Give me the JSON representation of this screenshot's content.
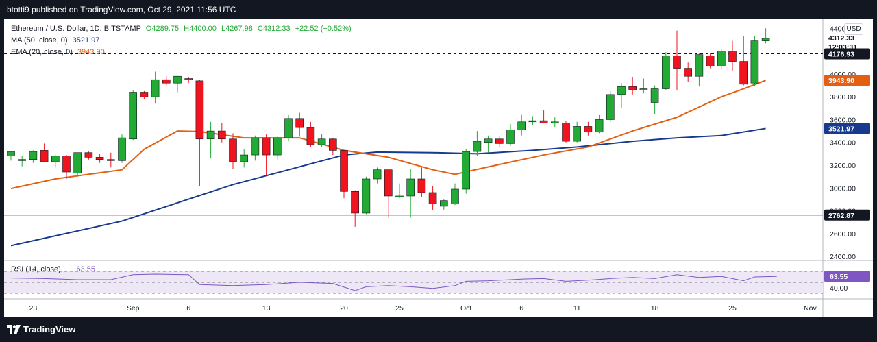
{
  "header": {
    "publisher": "btotti9 published on TradingView.com, Oct 29, 2021 11:56 UTC"
  },
  "footer": {
    "brand": "TradingView"
  },
  "legend": {
    "symbol": "Ethereum / U.S. Dollar, 1D, BITSTAMP",
    "open": "O4289.75",
    "high": "H4400.00",
    "low": "L4267.98",
    "close": "C4312.33",
    "change": "+22.52 (+0.52%)",
    "ma_label": "MA (50, close, 0)",
    "ma_value": "3521.97",
    "ema_label": "EMA (20, close, 0)",
    "ema_value": "3943.90"
  },
  "rsi_label": "RSI (14, close)",
  "rsi_value": "63.55",
  "currency": "USD",
  "colors": {
    "up": "#22ab34",
    "down": "#f0141f",
    "ma": "#173a8f",
    "ema": "#e35f12",
    "rsi": "#7e57c2",
    "rsi_band": "#ede7f6",
    "background": "#ffffff",
    "frame": "#131722"
  },
  "chart_data": {
    "type": "candlestick",
    "ylim": [
      2365,
      4480
    ],
    "price_ticks": [
      "4400.00",
      "4200.00",
      "4000.00",
      "3800.00",
      "3600.00",
      "3400.00",
      "3200.00",
      "3000.00",
      "2800.00",
      "2600.00",
      "2400.00"
    ],
    "x_ticks": [
      {
        "label": "23",
        "index": 2
      },
      {
        "label": "Sep",
        "index": 11
      },
      {
        "label": "6",
        "index": 16
      },
      {
        "label": "13",
        "index": 23
      },
      {
        "label": "20",
        "index": 30
      },
      {
        "label": "25",
        "index": 35
      },
      {
        "label": "Oct",
        "index": 41
      },
      {
        "label": "6",
        "index": 46
      },
      {
        "label": "11",
        "index": 51
      },
      {
        "label": "18",
        "index": 58
      },
      {
        "label": "25",
        "index": 65
      },
      {
        "label": "Nov",
        "index": 72
      }
    ],
    "candles": [
      [
        3280,
        3320,
        3240,
        3320
      ],
      [
        3240,
        3280,
        3190,
        3250
      ],
      [
        3250,
        3330,
        3220,
        3320
      ],
      [
        3330,
        3390,
        3240,
        3230
      ],
      [
        3230,
        3290,
        3180,
        3280
      ],
      [
        3280,
        3290,
        3080,
        3140
      ],
      [
        3130,
        3300,
        3100,
        3310
      ],
      [
        3310,
        3320,
        3250,
        3270
      ],
      [
        3270,
        3300,
        3220,
        3250
      ],
      [
        3250,
        3310,
        3180,
        3240
      ],
      [
        3240,
        3470,
        3220,
        3440
      ],
      [
        3430,
        3860,
        3420,
        3840
      ],
      [
        3840,
        3850,
        3780,
        3800
      ],
      [
        3800,
        4020,
        3740,
        3950
      ],
      [
        3950,
        3980,
        3900,
        3920
      ],
      [
        3920,
        3960,
        3840,
        3980
      ],
      [
        3960,
        3970,
        3920,
        3950
      ],
      [
        3940,
        3950,
        3020,
        3430
      ],
      [
        3430,
        3580,
        3260,
        3500
      ],
      [
        3500,
        3570,
        3400,
        3430
      ],
      [
        3430,
        3480,
        3170,
        3230
      ],
      [
        3230,
        3340,
        3180,
        3290
      ],
      [
        3290,
        3460,
        3240,
        3440
      ],
      [
        3440,
        3470,
        3110,
        3290
      ],
      [
        3290,
        3460,
        3250,
        3440
      ],
      [
        3440,
        3640,
        3410,
        3610
      ],
      [
        3610,
        3660,
        3450,
        3530
      ],
      [
        3530,
        3580,
        3360,
        3380
      ],
      [
        3380,
        3470,
        3360,
        3430
      ],
      [
        3430,
        3440,
        3290,
        3330
      ],
      [
        3330,
        3330,
        2910,
        2970
      ],
      [
        2970,
        2980,
        2660,
        2780
      ],
      [
        2780,
        3100,
        2770,
        3080
      ],
      [
        3080,
        3180,
        3040,
        3160
      ],
      [
        3160,
        3170,
        2740,
        2930
      ],
      [
        2930,
        3040,
        2910,
        2930
      ],
      [
        2930,
        3170,
        2740,
        3080
      ],
      [
        3080,
        3180,
        2920,
        2960
      ],
      [
        2960,
        3020,
        2810,
        2860
      ],
      [
        2840,
        2900,
        2810,
        2890
      ],
      [
        2860,
        3040,
        2850,
        2990
      ],
      [
        2990,
        3340,
        2950,
        3320
      ],
      [
        3320,
        3500,
        3280,
        3410
      ],
      [
        3400,
        3460,
        3310,
        3430
      ],
      [
        3430,
        3450,
        3360,
        3390
      ],
      [
        3390,
        3560,
        3370,
        3510
      ],
      [
        3510,
        3640,
        3460,
        3580
      ],
      [
        3580,
        3630,
        3550,
        3590
      ],
      [
        3590,
        3680,
        3570,
        3570
      ],
      [
        3570,
        3620,
        3530,
        3580
      ],
      [
        3570,
        3590,
        3400,
        3410
      ],
      [
        3410,
        3580,
        3400,
        3540
      ],
      [
        3540,
        3580,
        3460,
        3490
      ],
      [
        3490,
        3640,
        3480,
        3600
      ],
      [
        3600,
        3850,
        3580,
        3820
      ],
      [
        3820,
        3920,
        3700,
        3890
      ],
      [
        3890,
        3970,
        3820,
        3860
      ],
      [
        3860,
        3960,
        3830,
        3870
      ],
      [
        3750,
        3900,
        3650,
        3870
      ],
      [
        3870,
        4190,
        3860,
        4160
      ],
      [
        4160,
        4380,
        3860,
        4050
      ],
      [
        4050,
        4100,
        3930,
        3980
      ],
      [
        3980,
        4180,
        3890,
        4170
      ],
      [
        4160,
        4180,
        4050,
        4070
      ],
      [
        4070,
        4220,
        4040,
        4200
      ],
      [
        4200,
        4290,
        4030,
        4110
      ],
      [
        4110,
        4330,
        3900,
        3910
      ],
      [
        3920,
        4330,
        3890,
        4290
      ],
      [
        4290,
        4400,
        4267.98,
        4312.33
      ]
    ],
    "ma": [
      [
        0,
        2495
      ],
      [
        10,
        2710
      ],
      [
        20,
        3030
      ],
      [
        30,
        3290
      ],
      [
        33,
        3315
      ],
      [
        38,
        3310
      ],
      [
        42,
        3300
      ],
      [
        47,
        3330
      ],
      [
        51,
        3360
      ],
      [
        56,
        3410
      ],
      [
        60,
        3440
      ],
      [
        64,
        3460
      ],
      [
        68,
        3521.97
      ]
    ],
    "ema": [
      [
        0,
        2995
      ],
      [
        4,
        3080
      ],
      [
        10,
        3160
      ],
      [
        12,
        3340
      ],
      [
        15,
        3500
      ],
      [
        17,
        3495
      ],
      [
        21,
        3440
      ],
      [
        26,
        3440
      ],
      [
        30,
        3330
      ],
      [
        34,
        3270
      ],
      [
        38,
        3160
      ],
      [
        40,
        3120
      ],
      [
        43,
        3185
      ],
      [
        48,
        3290
      ],
      [
        52,
        3360
      ],
      [
        56,
        3500
      ],
      [
        60,
        3620
      ],
      [
        64,
        3800
      ],
      [
        66,
        3870
      ],
      [
        68,
        3943.9
      ]
    ],
    "levels": [
      {
        "value": 4176.93,
        "label": "4176.93",
        "style": "dashed"
      },
      {
        "value": 2762.87,
        "label": "2762.87",
        "style": "solid"
      }
    ],
    "last_price": {
      "value": 4312.33,
      "label": "4312.33",
      "countdown": "12:03:31"
    },
    "rsi": {
      "ylim": [
        20,
        90
      ],
      "upper": 70,
      "lower": 30,
      "mid": 50,
      "ticks": [
        "40.00"
      ],
      "values": [
        [
          0,
          58
        ],
        [
          3,
          57
        ],
        [
          6,
          55
        ],
        [
          9,
          55
        ],
        [
          11,
          64
        ],
        [
          13,
          65
        ],
        [
          16,
          64
        ],
        [
          17,
          46
        ],
        [
          20,
          44
        ],
        [
          23,
          46
        ],
        [
          26,
          50
        ],
        [
          29,
          48
        ],
        [
          31,
          35
        ],
        [
          32,
          42
        ],
        [
          34,
          44
        ],
        [
          36,
          42
        ],
        [
          38,
          39
        ],
        [
          40,
          44
        ],
        [
          41,
          52
        ],
        [
          43,
          53
        ],
        [
          46,
          56
        ],
        [
          48,
          57
        ],
        [
          50,
          52
        ],
        [
          52,
          54
        ],
        [
          54,
          57
        ],
        [
          56,
          59
        ],
        [
          58,
          57
        ],
        [
          60,
          64
        ],
        [
          62,
          59
        ],
        [
          64,
          61
        ],
        [
          66,
          53
        ],
        [
          67,
          60
        ],
        [
          68,
          60.5
        ],
        [
          69,
          61
        ]
      ]
    }
  }
}
